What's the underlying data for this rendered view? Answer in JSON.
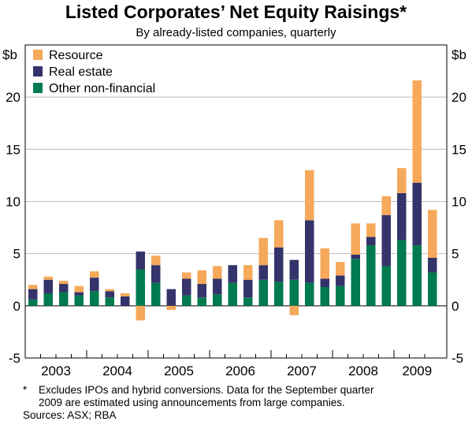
{
  "title": "Listed Corporates’ Net Equity Raisings*",
  "subtitle": "By already-listed companies, quarterly",
  "footnote_marker": "*",
  "footnote_line1": "Excludes IPOs and hybrid conversions. Data for the September quarter",
  "footnote_line2": "2009 are estimated using announcements from large companies.",
  "sources": "Sources: ASX; RBA",
  "chart_data": {
    "type": "bar",
    "stacked": true,
    "unit_left": "$b",
    "unit_right": "$b",
    "ylim": [
      -5,
      25
    ],
    "yticks": [
      -5,
      0,
      5,
      10,
      15,
      20
    ],
    "grid": true,
    "legend_position": "top-left",
    "year_labels": [
      "2003",
      "2004",
      "2005",
      "2006",
      "2007",
      "2008",
      "2009"
    ],
    "quarters": [
      "2003 Q1",
      "2003 Q2",
      "2003 Q3",
      "2003 Q4",
      "2004 Q1",
      "2004 Q2",
      "2004 Q3",
      "2004 Q4",
      "2005 Q1",
      "2005 Q2",
      "2005 Q3",
      "2005 Q4",
      "2006 Q1",
      "2006 Q2",
      "2006 Q3",
      "2006 Q4",
      "2007 Q1",
      "2007 Q2",
      "2007 Q3",
      "2007 Q4",
      "2008 Q1",
      "2008 Q2",
      "2008 Q3",
      "2008 Q4",
      "2009 Q1",
      "2009 Q2",
      "2009 Q3"
    ],
    "series": [
      {
        "name": "Other non-financial",
        "color": "#007a4f",
        "values": [
          0.6,
          1.2,
          1.3,
          1.0,
          1.4,
          0.8,
          0.0,
          3.5,
          2.2,
          0.0,
          1.0,
          0.8,
          1.1,
          2.2,
          0.8,
          2.5,
          2.3,
          2.5,
          2.2,
          1.8,
          1.9,
          4.5,
          5.8,
          3.8,
          6.3,
          5.8,
          3.2
        ]
      },
      {
        "name": "Real estate",
        "color": "#35336b",
        "values": [
          1.0,
          1.3,
          0.8,
          0.3,
          1.3,
          0.6,
          0.9,
          1.7,
          1.7,
          1.6,
          1.6,
          1.3,
          1.5,
          1.7,
          1.7,
          1.4,
          3.3,
          1.9,
          6.0,
          0.8,
          1.0,
          0.4,
          0.8,
          4.9,
          4.5,
          6.0,
          1.4
        ]
      },
      {
        "name": "Resource",
        "color": "#f6a95a",
        "values": [
          0.4,
          0.3,
          0.3,
          0.6,
          0.6,
          0.2,
          0.3,
          -1.4,
          0.9,
          -0.4,
          0.6,
          1.3,
          1.2,
          0.0,
          1.4,
          2.6,
          2.6,
          -0.9,
          4.8,
          2.9,
          1.3,
          3.0,
          1.3,
          1.8,
          2.4,
          9.8,
          4.6
        ]
      }
    ]
  }
}
